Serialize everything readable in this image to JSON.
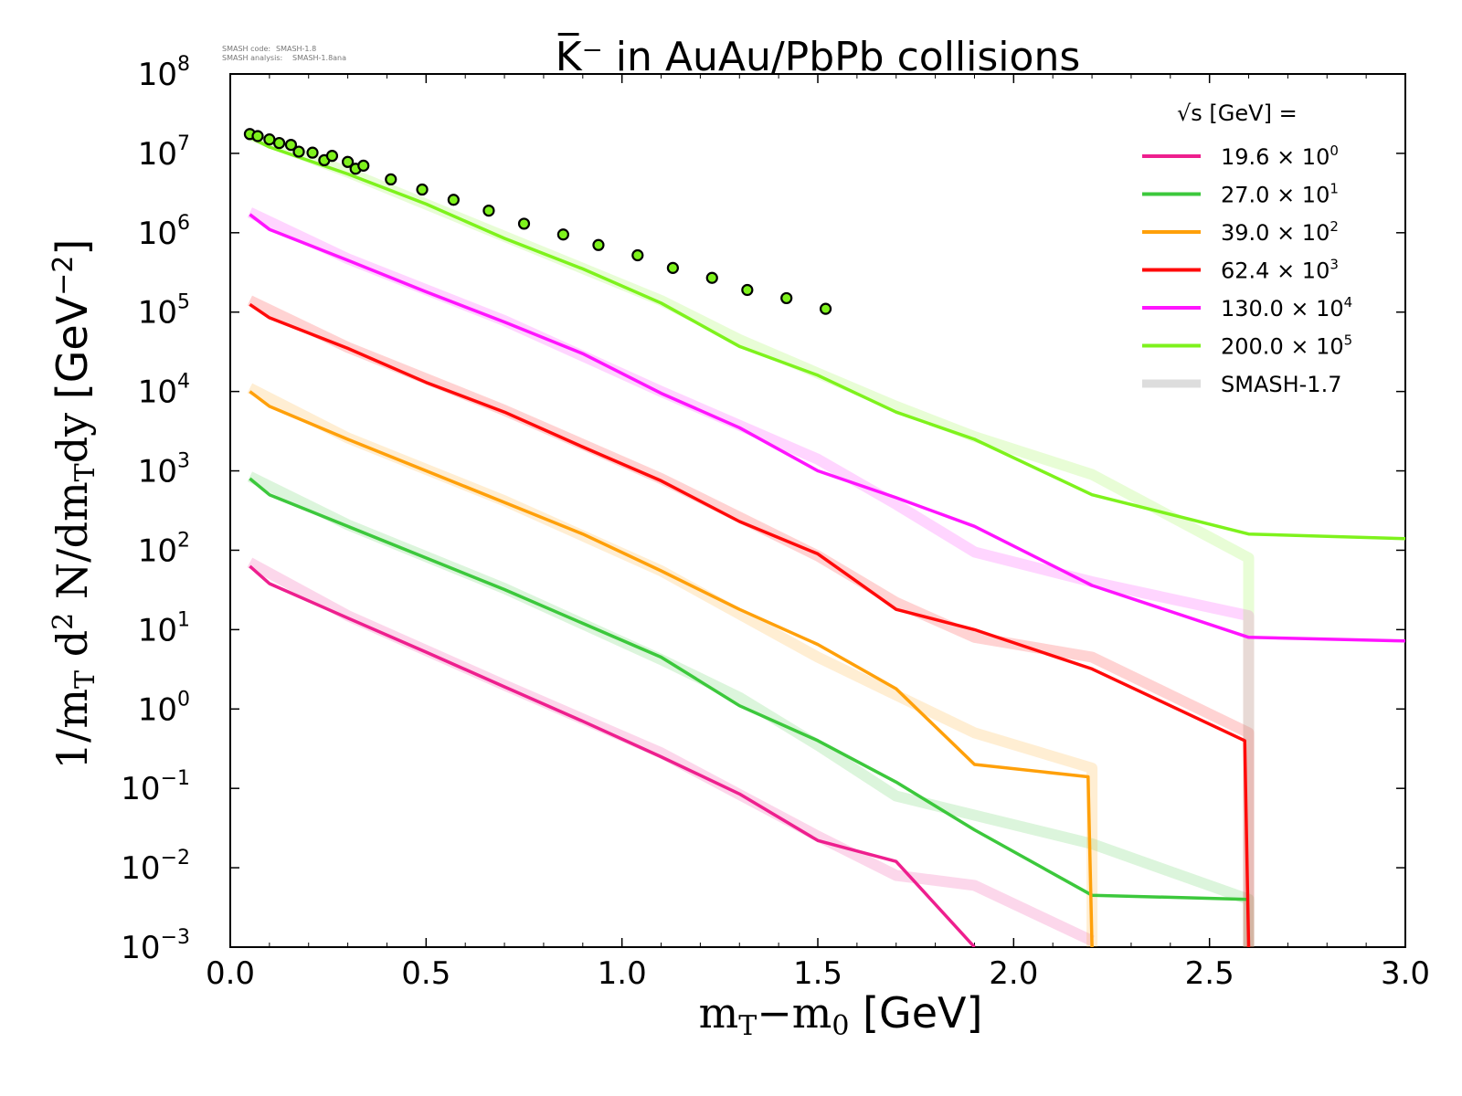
{
  "meta": {
    "code_label": "SMASH code:",
    "code_value": "SMASH-1.8",
    "analysis_label": "SMASH analysis:",
    "analysis_value": "SMASH-1.8ana"
  },
  "chart_data": {
    "type": "line",
    "title": "K̅⁻ in AuAu/PbPb collisions",
    "xlabel": "m_T−m_0 [GeV]",
    "ylabel": "1/m_T d^2 N/dm_T dy [GeV^−2]",
    "xlim": [
      0.0,
      3.0
    ],
    "ylim_log10": [
      -3,
      8
    ],
    "x_ticks": [
      "0.0",
      "0.5",
      "1.0",
      "1.5",
      "2.0",
      "2.5",
      "3.0"
    ],
    "y_ticks": [
      {
        "base": "10",
        "exp": "8",
        "value": 8
      },
      {
        "base": "10",
        "exp": "7",
        "value": 7
      },
      {
        "base": "10",
        "exp": "6",
        "value": 6
      },
      {
        "base": "10",
        "exp": "5",
        "value": 5
      },
      {
        "base": "10",
        "exp": "4",
        "value": 4
      },
      {
        "base": "10",
        "exp": "3",
        "value": 3
      },
      {
        "base": "10",
        "exp": "2",
        "value": 2
      },
      {
        "base": "10",
        "exp": "1",
        "value": 1
      },
      {
        "base": "10",
        "exp": "0",
        "value": 0
      },
      {
        "base": "10",
        "exp": "−1",
        "value": -1
      },
      {
        "base": "10",
        "exp": "−2",
        "value": -2
      },
      {
        "base": "10",
        "exp": "−3",
        "value": -3
      }
    ],
    "legend_title": "√s  [GeV] =",
    "legend_position": "top-right",
    "series": [
      {
        "name": "19.6 × 10",
        "exp": "0",
        "color": "#ee1f8e",
        "x": [
          0.05,
          0.1,
          0.3,
          0.5,
          0.7,
          0.9,
          1.1,
          1.3,
          1.5,
          1.7,
          1.9
        ],
        "values": [
          63,
          38,
          14,
          5.2,
          1.9,
          0.7,
          0.25,
          0.085,
          0.022,
          0.012,
          0.001
        ]
      },
      {
        "name": "27.0 × 10",
        "exp": "1",
        "color": "#3cc83c",
        "x": [
          0.05,
          0.1,
          0.3,
          0.5,
          0.7,
          0.9,
          1.1,
          1.3,
          1.5,
          1.7,
          1.9,
          2.2,
          2.6
        ],
        "values": [
          800,
          500,
          200,
          80,
          32,
          12,
          4.5,
          1.1,
          0.4,
          0.12,
          0.03,
          0.0045,
          0.004
        ]
      },
      {
        "name": "39.0 × 10",
        "exp": "2",
        "color": "#ffa00a",
        "x": [
          0.05,
          0.1,
          0.3,
          0.5,
          0.7,
          0.9,
          1.1,
          1.3,
          1.5,
          1.7,
          1.9,
          2.19,
          2.2
        ],
        "values": [
          10000,
          6500,
          2500,
          1000,
          400,
          160,
          55,
          18,
          6.5,
          1.8,
          0.2,
          0.14,
          0.001
        ]
      },
      {
        "name": "62.4 × 10",
        "exp": "3",
        "color": "#ff0a0a",
        "x": [
          0.05,
          0.1,
          0.3,
          0.5,
          0.7,
          0.9,
          1.1,
          1.3,
          1.5,
          1.7,
          1.9,
          2.2,
          2.59,
          2.6
        ],
        "values": [
          125000,
          85000,
          35000,
          13000,
          5500,
          2000,
          750,
          230,
          90,
          18,
          10,
          3.2,
          0.4,
          0.001
        ]
      },
      {
        "name": "130.0 × 10",
        "exp": "4",
        "color": "#ff14ff",
        "x": [
          0.05,
          0.1,
          0.3,
          0.5,
          0.7,
          0.9,
          1.1,
          1.3,
          1.5,
          1.7,
          1.9,
          2.2,
          2.6,
          3.0
        ],
        "values": [
          1700000,
          1100000,
          450000,
          180000,
          75000,
          30000,
          9500,
          3500,
          1000,
          460,
          200,
          36,
          8,
          7.2
        ]
      },
      {
        "name": "200.0 × 10",
        "exp": "5",
        "color": "#7ef21c",
        "x": [
          0.05,
          0.1,
          0.3,
          0.5,
          0.7,
          0.9,
          1.1,
          1.3,
          1.5,
          1.7,
          1.9,
          2.2,
          2.6,
          3.0
        ],
        "values": [
          16000000,
          12000000,
          5500000,
          2300000,
          850000,
          350000,
          130000,
          37000,
          16000,
          5500,
          2500,
          500,
          160,
          140
        ]
      }
    ],
    "smash17": {
      "name": "SMASH-1.7",
      "color": "#dddddd",
      "series": [
        {
          "x": [
            0.05,
            0.3,
            0.7,
            1.1,
            1.5,
            1.7,
            1.9,
            2.2
          ],
          "values": [
            70,
            15,
            2,
            0.28,
            0.025,
            0.008,
            0.006,
            0.0012
          ]
        },
        {
          "x": [
            0.05,
            0.3,
            0.7,
            1.1,
            1.3,
            1.5,
            1.7,
            2.2,
            2.6,
            2.6
          ],
          "values": [
            850,
            210,
            33,
            4.2,
            1.4,
            0.35,
            0.08,
            0.02,
            0.004,
            0.001
          ]
        },
        {
          "x": [
            0.05,
            0.3,
            0.7,
            1.1,
            1.5,
            1.7,
            1.9,
            2.2,
            2.2
          ],
          "values": [
            11000,
            2600,
            420,
            55,
            4.5,
            1.5,
            0.5,
            0.18,
            0.001
          ]
        },
        {
          "x": [
            0.05,
            0.3,
            0.7,
            1.1,
            1.5,
            1.7,
            1.9,
            2.2,
            2.6,
            2.6
          ],
          "values": [
            140000,
            36000,
            5800,
            800,
            85,
            22,
            8,
            4.5,
            0.5,
            0.001
          ]
        },
        {
          "x": [
            0.05,
            0.3,
            0.7,
            1.1,
            1.5,
            1.7,
            1.9,
            2.2,
            2.6,
            2.6
          ],
          "values": [
            1800000,
            470000,
            78000,
            10000,
            1400,
            380,
            95,
            40,
            15,
            0.001
          ]
        },
        {
          "x": [
            0.05,
            0.3,
            0.7,
            1.1,
            1.3,
            1.5,
            1.7,
            1.9,
            2.2,
            2.6,
            2.6
          ],
          "values": [
            17000000,
            5800000,
            900000,
            140000,
            45000,
            17000,
            6500,
            2700,
            900,
            80,
            0.001
          ]
        }
      ]
    },
    "data_points": {
      "color": "#7ef21c",
      "x": [
        0.05,
        0.07,
        0.1,
        0.125,
        0.155,
        0.175,
        0.21,
        0.24,
        0.26,
        0.3,
        0.32,
        0.34,
        0.41,
        0.49,
        0.57,
        0.66,
        0.75,
        0.85,
        0.94,
        1.04,
        1.13,
        1.23,
        1.32,
        1.42,
        1.52
      ],
      "values": [
        17500000,
        16500000,
        15000000,
        13500000,
        12800000,
        10500000,
        10200000,
        8200000,
        9300000,
        7800000,
        6400000,
        7000000,
        4700000,
        3500000,
        2600000,
        1900000,
        1300000,
        950000,
        700000,
        520000,
        360000,
        270000,
        190000,
        150000,
        110000
      ]
    }
  }
}
